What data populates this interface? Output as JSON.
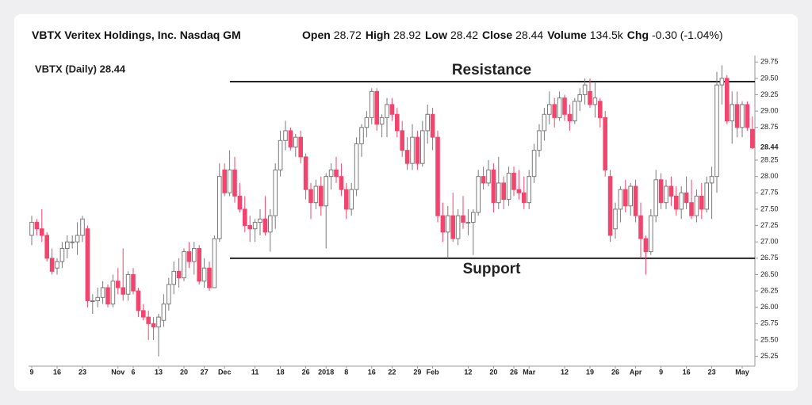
{
  "header": {
    "title": "VBTX Veritex Holdings, Inc. Nasdaq GM",
    "stats": [
      {
        "label": "Open",
        "value": "28.72"
      },
      {
        "label": "High",
        "value": "28.92"
      },
      {
        "label": "Low",
        "value": "28.42"
      },
      {
        "label": "Close",
        "value": "28.44"
      },
      {
        "label": "Volume",
        "value": "134.5k"
      },
      {
        "label": "Chg",
        "value": "-0.30 (-1.04%)"
      }
    ]
  },
  "chart_data": {
    "type": "candlestick",
    "title": "VBTX (Daily) 28.44",
    "up_color": "#7a7a7a",
    "down_color": "#f2456d",
    "line_color": "#222222",
    "ylim": [
      25.1,
      29.85
    ],
    "yticks": [
      {
        "value": 29.75,
        "label": "29.75"
      },
      {
        "value": 29.5,
        "label": "29.50"
      },
      {
        "value": 29.25,
        "label": "29.25"
      },
      {
        "value": 29,
        "label": "29.00"
      },
      {
        "value": 28.75,
        "label": "28.75"
      },
      {
        "value": 28.25,
        "label": "28.25"
      },
      {
        "value": 28,
        "label": "28.00"
      },
      {
        "value": 27.75,
        "label": "27.75"
      },
      {
        "value": 27.5,
        "label": "27.50"
      },
      {
        "value": 27.25,
        "label": "27.25"
      },
      {
        "value": 27,
        "label": "27.00"
      },
      {
        "value": 26.75,
        "label": "26.75"
      },
      {
        "value": 26.5,
        "label": "26.50"
      },
      {
        "value": 26.25,
        "label": "26.25"
      },
      {
        "value": 26,
        "label": "26.00"
      },
      {
        "value": 25.75,
        "label": "25.75"
      },
      {
        "value": 25.5,
        "label": "25.50"
      },
      {
        "value": 25.25,
        "label": "25.25"
      }
    ],
    "annotations": [
      {
        "text": "Resistance",
        "value": 29.45
      },
      {
        "text": "Support",
        "value": 26.75
      }
    ],
    "categories": [
      "9",
      null,
      null,
      null,
      null,
      "16",
      null,
      null,
      null,
      null,
      "23",
      null,
      null,
      null,
      null,
      null,
      null,
      "Nov",
      null,
      null,
      "6",
      null,
      null,
      null,
      null,
      "13",
      null,
      null,
      null,
      null,
      "20",
      null,
      null,
      null,
      "27",
      null,
      null,
      null,
      "Dec",
      null,
      null,
      null,
      null,
      null,
      "11",
      null,
      null,
      null,
      null,
      "18",
      null,
      null,
      null,
      null,
      "26",
      null,
      null,
      null,
      "2018",
      null,
      null,
      null,
      "8",
      null,
      null,
      null,
      null,
      "16",
      null,
      null,
      null,
      "22",
      null,
      null,
      null,
      null,
      "29",
      null,
      null,
      "Feb",
      null,
      null,
      null,
      null,
      null,
      null,
      "12",
      null,
      null,
      null,
      null,
      "20",
      null,
      null,
      null,
      "26",
      null,
      null,
      "Mar",
      null,
      null,
      null,
      null,
      null,
      null,
      "12",
      null,
      null,
      null,
      null,
      "19",
      null,
      null,
      null,
      null,
      "26",
      null,
      null,
      null,
      "Apr",
      null,
      null,
      null,
      null,
      "9",
      null,
      null,
      null,
      null,
      "16",
      null,
      null,
      null,
      null,
      "23",
      null,
      null,
      null,
      null,
      null,
      "May",
      null,
      null
    ],
    "open": [
      27.1,
      27.3,
      27.2,
      27.1,
      26.75,
      26.6,
      26.7,
      26.9,
      27.0,
      27.0,
      27.1,
      27.2,
      26.1,
      26.1,
      26.15,
      26.3,
      26.05,
      26.4,
      26.3,
      26.2,
      26.5,
      26.25,
      25.95,
      25.85,
      25.75,
      25.7,
      25.8,
      26.05,
      26.35,
      26.55,
      26.45,
      26.85,
      26.7,
      26.9,
      26.4,
      26.6,
      26.3,
      27.05,
      28.1,
      27.75,
      28.1,
      27.7,
      27.5,
      27.25,
      27.2,
      27.3,
      27.35,
      27.15,
      27.4,
      28.1,
      28.55,
      28.7,
      28.45,
      28.6,
      28.3,
      27.8,
      27.6,
      27.85,
      27.55,
      28.0,
      28.1,
      28.0,
      27.8,
      27.5,
      27.8,
      28.5,
      28.75,
      28.9,
      29.3,
      28.8,
      28.9,
      29.1,
      28.95,
      28.7,
      28.4,
      28.2,
      28.6,
      28.2,
      28.7,
      28.95,
      28.6,
      27.4,
      27.15,
      27.4,
      27.05,
      27.4,
      27.3,
      27.3,
      27.45,
      28.0,
      27.9,
      28.1,
      27.6,
      27.9,
      27.65,
      28.05,
      27.8,
      27.75,
      27.6,
      28.0,
      28.4,
      28.7,
      28.95,
      29.1,
      28.9,
      29.2,
      28.95,
      28.85,
      29.15,
      29.25,
      29.3,
      29.1,
      29.15,
      28.9,
      28.0,
      27.2,
      27.5,
      27.8,
      27.55,
      27.85,
      27.4,
      27.05,
      26.85,
      27.4,
      27.95,
      27.6,
      27.85,
      27.7,
      27.5,
      27.75,
      27.6,
      27.4,
      27.7,
      27.5,
      27.9,
      28.0,
      29.4,
      29.5,
      28.85,
      29.1,
      28.75,
      29.1,
      28.72
    ],
    "high": [
      27.4,
      27.35,
      27.5,
      27.15,
      26.9,
      26.75,
      27.0,
      27.1,
      27.1,
      27.3,
      27.4,
      27.25,
      26.2,
      26.3,
      26.4,
      26.35,
      26.5,
      26.6,
      26.9,
      26.55,
      26.6,
      26.3,
      26.05,
      25.95,
      25.85,
      25.9,
      26.2,
      26.45,
      26.7,
      26.75,
      26.9,
      27.0,
      27.0,
      26.95,
      26.75,
      26.7,
      27.1,
      28.2,
      28.2,
      28.4,
      28.3,
      27.9,
      27.7,
      27.4,
      27.35,
      27.5,
      27.7,
      27.5,
      28.2,
      28.7,
      28.85,
      28.75,
      28.65,
      28.7,
      28.35,
      27.9,
      27.95,
      28.0,
      28.05,
      28.2,
      28.3,
      28.2,
      27.9,
      27.9,
      28.6,
      28.8,
      29.0,
      29.35,
      29.35,
      28.95,
      29.2,
      29.2,
      29.05,
      28.85,
      28.6,
      28.8,
      28.7,
      28.85,
      29.1,
      29.05,
      28.7,
      27.6,
      27.55,
      27.75,
      27.5,
      27.7,
      27.5,
      27.5,
      28.1,
      28.15,
      28.25,
      28.2,
      28.3,
      28.0,
      28.15,
      28.15,
      28.1,
      28.0,
      28.1,
      28.5,
      28.8,
      29.05,
      29.3,
      29.2,
      29.3,
      29.25,
      29.1,
      29.2,
      29.35,
      29.5,
      29.5,
      29.45,
      29.2,
      29.0,
      28.1,
      27.6,
      27.85,
      27.95,
      27.9,
      27.95,
      27.6,
      27.1,
      27.5,
      28.1,
      28.05,
      27.95,
      28.0,
      27.85,
      27.85,
      28.0,
      27.95,
      27.8,
      27.9,
      28.0,
      28.15,
      29.6,
      29.7,
      29.55,
      29.3,
      29.3,
      29.15,
      29.15,
      28.92
    ],
    "low": [
      26.95,
      27.1,
      27.0,
      26.7,
      26.5,
      26.5,
      26.6,
      26.75,
      26.9,
      26.8,
      27.0,
      26.0,
      25.9,
      26.0,
      26.05,
      26.0,
      26.0,
      26.2,
      26.1,
      26.1,
      26.2,
      25.85,
      25.8,
      25.5,
      25.5,
      25.25,
      25.7,
      25.95,
      26.2,
      26.3,
      26.4,
      26.6,
      26.5,
      26.35,
      26.3,
      26.25,
      26.3,
      27.0,
      27.7,
      27.7,
      27.6,
      27.45,
      27.15,
      27.0,
      27.0,
      27.1,
      27.1,
      26.85,
      27.2,
      28.0,
      28.4,
      28.4,
      28.3,
      28.2,
      27.65,
      27.35,
      27.5,
      27.4,
      26.9,
      27.8,
      27.9,
      27.7,
      27.35,
      27.4,
      27.7,
      28.3,
      28.6,
      28.8,
      28.7,
      28.6,
      28.6,
      28.85,
      28.6,
      28.3,
      28.1,
      28.1,
      28.1,
      28.15,
      28.5,
      28.4,
      27.3,
      27.0,
      26.75,
      27.0,
      26.95,
      27.2,
      27.1,
      26.8,
      27.4,
      27.8,
      27.85,
      27.45,
      27.5,
      27.5,
      27.55,
      27.7,
      27.65,
      27.5,
      27.5,
      27.9,
      28.3,
      28.55,
      28.8,
      28.75,
      28.85,
      28.85,
      28.7,
      28.8,
      29.0,
      29.1,
      29.05,
      28.9,
      28.75,
      28.0,
      27.0,
      27.05,
      27.3,
      27.45,
      27.4,
      27.3,
      26.75,
      26.5,
      26.8,
      27.3,
      27.5,
      27.5,
      27.55,
      27.4,
      27.35,
      27.5,
      27.35,
      27.3,
      27.35,
      27.45,
      27.35,
      27.75,
      29.1,
      28.8,
      28.5,
      28.6,
      28.6,
      28.7,
      28.42
    ],
    "close": [
      27.3,
      27.2,
      27.1,
      26.75,
      26.55,
      26.7,
      26.9,
      27.0,
      27.0,
      27.1,
      27.35,
      26.1,
      26.1,
      26.15,
      26.3,
      26.05,
      26.4,
      26.3,
      26.2,
      26.5,
      26.25,
      25.95,
      25.85,
      25.75,
      25.7,
      25.85,
      26.05,
      26.35,
      26.55,
      26.45,
      26.85,
      26.7,
      26.9,
      26.4,
      26.6,
      26.3,
      27.05,
      28.0,
      27.75,
      28.1,
      27.7,
      27.5,
      27.25,
      27.2,
      27.3,
      27.35,
      27.15,
      27.4,
      28.1,
      28.55,
      28.7,
      28.45,
      28.6,
      28.3,
      27.8,
      27.6,
      27.85,
      27.55,
      28.0,
      28.1,
      28.0,
      27.8,
      27.5,
      27.8,
      28.5,
      28.75,
      28.9,
      29.3,
      28.8,
      28.9,
      29.1,
      28.95,
      28.7,
      28.4,
      28.2,
      28.6,
      28.2,
      28.7,
      28.95,
      28.6,
      27.4,
      27.15,
      27.4,
      27.05,
      27.4,
      27.3,
      27.3,
      27.45,
      28.0,
      27.9,
      28.1,
      27.6,
      27.9,
      27.65,
      28.05,
      27.8,
      27.75,
      27.6,
      28.0,
      28.4,
      28.7,
      28.95,
      29.1,
      28.9,
      29.2,
      28.95,
      28.85,
      29.15,
      29.25,
      29.4,
      29.1,
      29.2,
      28.9,
      28.1,
      27.1,
      27.5,
      27.8,
      27.55,
      27.85,
      27.4,
      27.05,
      26.85,
      27.4,
      27.95,
      27.6,
      27.85,
      27.7,
      27.5,
      27.75,
      27.6,
      27.4,
      27.7,
      27.5,
      27.9,
      28.0,
      29.4,
      29.5,
      28.85,
      29.1,
      28.75,
      29.1,
      28.75,
      28.44
    ]
  }
}
